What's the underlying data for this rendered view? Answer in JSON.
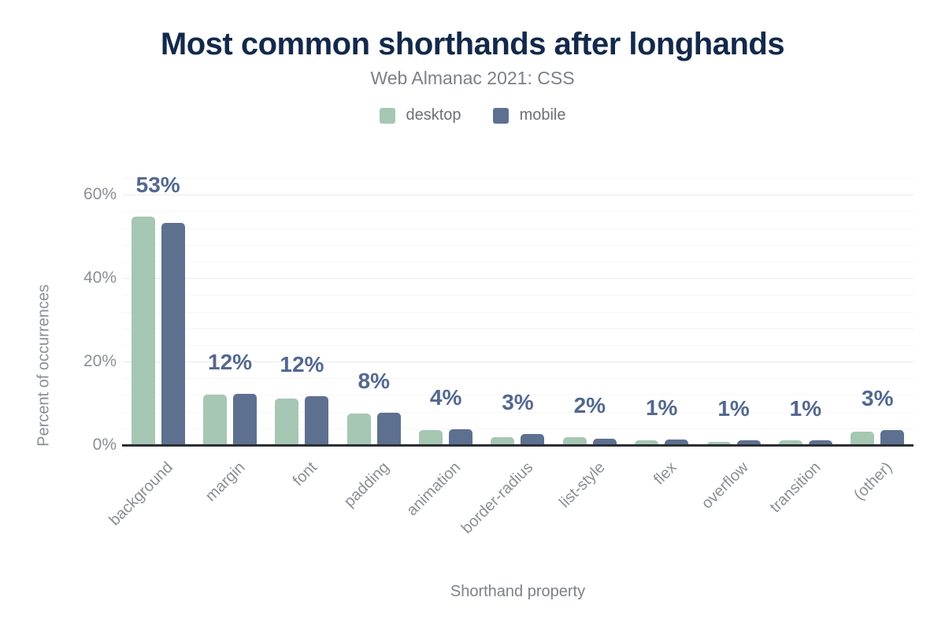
{
  "header": {
    "title": "Most common shorthands after longhands",
    "subtitle": "Web Almanac 2021: CSS"
  },
  "legend": [
    {
      "name": "desktop",
      "label": "desktop",
      "color": "#a5c7b4"
    },
    {
      "name": "mobile",
      "label": "mobile",
      "color": "#5d7090"
    }
  ],
  "colors": {
    "title": "#13294b",
    "subtitle": "#7b8087",
    "desktop_bar": "#a5c7b4",
    "mobile_bar": "#5d7090",
    "data_label": "#536890",
    "axis_text": "#8b8f94",
    "axis_line": "#2b2e33",
    "major_grid": "#ebebeb",
    "minor_grid": "#f6f6f6"
  },
  "chart_data": {
    "type": "bar",
    "title": "Most common shorthands after longhands",
    "subtitle": "Web Almanac 2021: CSS",
    "xlabel": "Shorthand property",
    "ylabel": "Percent of occurrences",
    "ylim": [
      0,
      64
    ],
    "grid": {
      "minor_step": 4,
      "major_step": 20,
      "horizontal": true
    },
    "legend_position": "top",
    "yticks": [
      {
        "value": 0,
        "label": "0%"
      },
      {
        "value": 20,
        "label": "20%"
      },
      {
        "value": 40,
        "label": "40%"
      },
      {
        "value": 60,
        "label": "60%"
      }
    ],
    "categories": [
      "background",
      "margin",
      "font",
      "padding",
      "animation",
      "border-radius",
      "list-style",
      "flex",
      "overflow",
      "transition",
      "(other)"
    ],
    "series": [
      {
        "name": "desktop",
        "color": "#a5c7b4",
        "values": [
          54.8,
          12.0,
          11.2,
          7.5,
          3.6,
          1.9,
          1.9,
          1.1,
          0.8,
          1.1,
          3.3
        ]
      },
      {
        "name": "mobile",
        "color": "#5d7090",
        "values": [
          53.3,
          12.2,
          11.8,
          7.7,
          3.7,
          2.7,
          1.5,
          1.3,
          1.2,
          1.1,
          3.5
        ]
      }
    ],
    "bar_labels": [
      "53%",
      "12%",
      "12%",
      "8%",
      "4%",
      "3%",
      "2%",
      "1%",
      "1%",
      "1%",
      "3%"
    ]
  }
}
